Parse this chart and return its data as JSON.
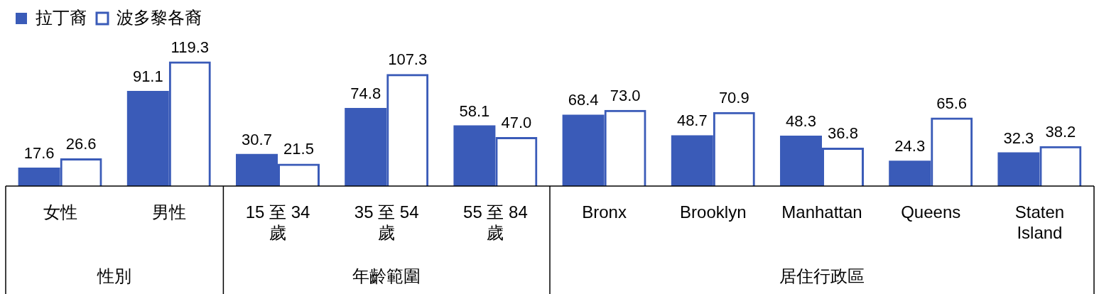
{
  "chart_data": {
    "type": "bar",
    "categories": [
      "女性",
      "男性",
      "15 至 34 歲",
      "35 至 54 歲",
      "55 至 84 歲",
      "Bronx",
      "Brooklyn",
      "Manhattan",
      "Queens",
      "Staten Island"
    ],
    "series": [
      {
        "name": "拉丁裔",
        "color": "#3a5bb8",
        "values": [
          17.6,
          91.1,
          30.7,
          74.8,
          58.1,
          68.4,
          48.7,
          48.3,
          24.3,
          32.3
        ],
        "value_labels": [
          "17.6",
          "91.1",
          "30.7",
          "74.8",
          "58.1",
          "68.4",
          "48.7",
          "48.3",
          "24.3",
          "32.3"
        ]
      },
      {
        "name": "波多黎各裔",
        "color": "#3a5bb8",
        "values": [
          26.6,
          119.3,
          21.5,
          107.3,
          47.0,
          73.0,
          70.9,
          36.8,
          65.6,
          38.2
        ],
        "value_labels": [
          "26.6",
          "119.3",
          "21.5",
          "107.3",
          "47.0",
          "73.0",
          "70.9",
          "36.8",
          "65.6",
          "38.2"
        ]
      }
    ],
    "annotations": [
      "性別",
      "年齡範圍",
      "居住行政區"
    ],
    "legend": "top left",
    "grid": false
  }
}
